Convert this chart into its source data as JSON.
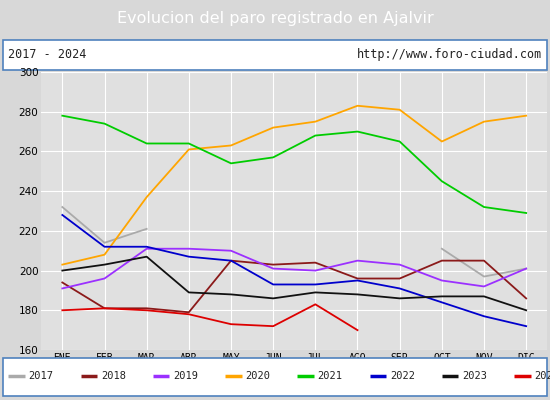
{
  "title": "Evolucion del paro registrado en Ajalvir",
  "subtitle_left": "2017 - 2024",
  "subtitle_right": "http://www.foro-ciudad.com",
  "months": [
    "ENE",
    "FEB",
    "MAR",
    "ABR",
    "MAY",
    "JUN",
    "JUL",
    "AGO",
    "SEP",
    "OCT",
    "NOV",
    "DIC"
  ],
  "ylim": [
    160,
    300
  ],
  "yticks": [
    160,
    180,
    200,
    220,
    240,
    260,
    280,
    300
  ],
  "series": {
    "2017": {
      "color": "#aaaaaa",
      "data": [
        232,
        214,
        221,
        null,
        null,
        null,
        null,
        null,
        null,
        211,
        197,
        201
      ]
    },
    "2018": {
      "color": "#8b1a1a",
      "data": [
        194,
        181,
        181,
        179,
        205,
        203,
        204,
        196,
        196,
        205,
        205,
        186
      ]
    },
    "2019": {
      "color": "#9b30ff",
      "data": [
        191,
        196,
        211,
        211,
        210,
        201,
        200,
        205,
        203,
        195,
        192,
        201
      ]
    },
    "2020": {
      "color": "#ffa500",
      "data": [
        203,
        208,
        237,
        261,
        263,
        272,
        275,
        283,
        281,
        265,
        275,
        278
      ]
    },
    "2021": {
      "color": "#00cc00",
      "data": [
        278,
        274,
        264,
        264,
        254,
        257,
        268,
        270,
        265,
        245,
        232,
        229
      ]
    },
    "2022": {
      "color": "#0000cc",
      "data": [
        228,
        212,
        212,
        207,
        205,
        193,
        193,
        195,
        191,
        184,
        177,
        172
      ]
    },
    "2023": {
      "color": "#111111",
      "data": [
        200,
        203,
        207,
        189,
        188,
        186,
        189,
        188,
        186,
        187,
        187,
        180
      ]
    },
    "2024": {
      "color": "#dd0000",
      "data": [
        180,
        181,
        180,
        178,
        173,
        172,
        183,
        170,
        null,
        null,
        null,
        null
      ]
    }
  },
  "background_color": "#d8d8d8",
  "plot_bg_color": "#e0e0e0",
  "title_bg_color": "#4f81bd",
  "title_fg_color": "#ffffff",
  "header_bg_color": "#ffffff",
  "grid_color": "#ffffff",
  "legend_bg_color": "#ffffff",
  "border_color": "#4f81bd"
}
